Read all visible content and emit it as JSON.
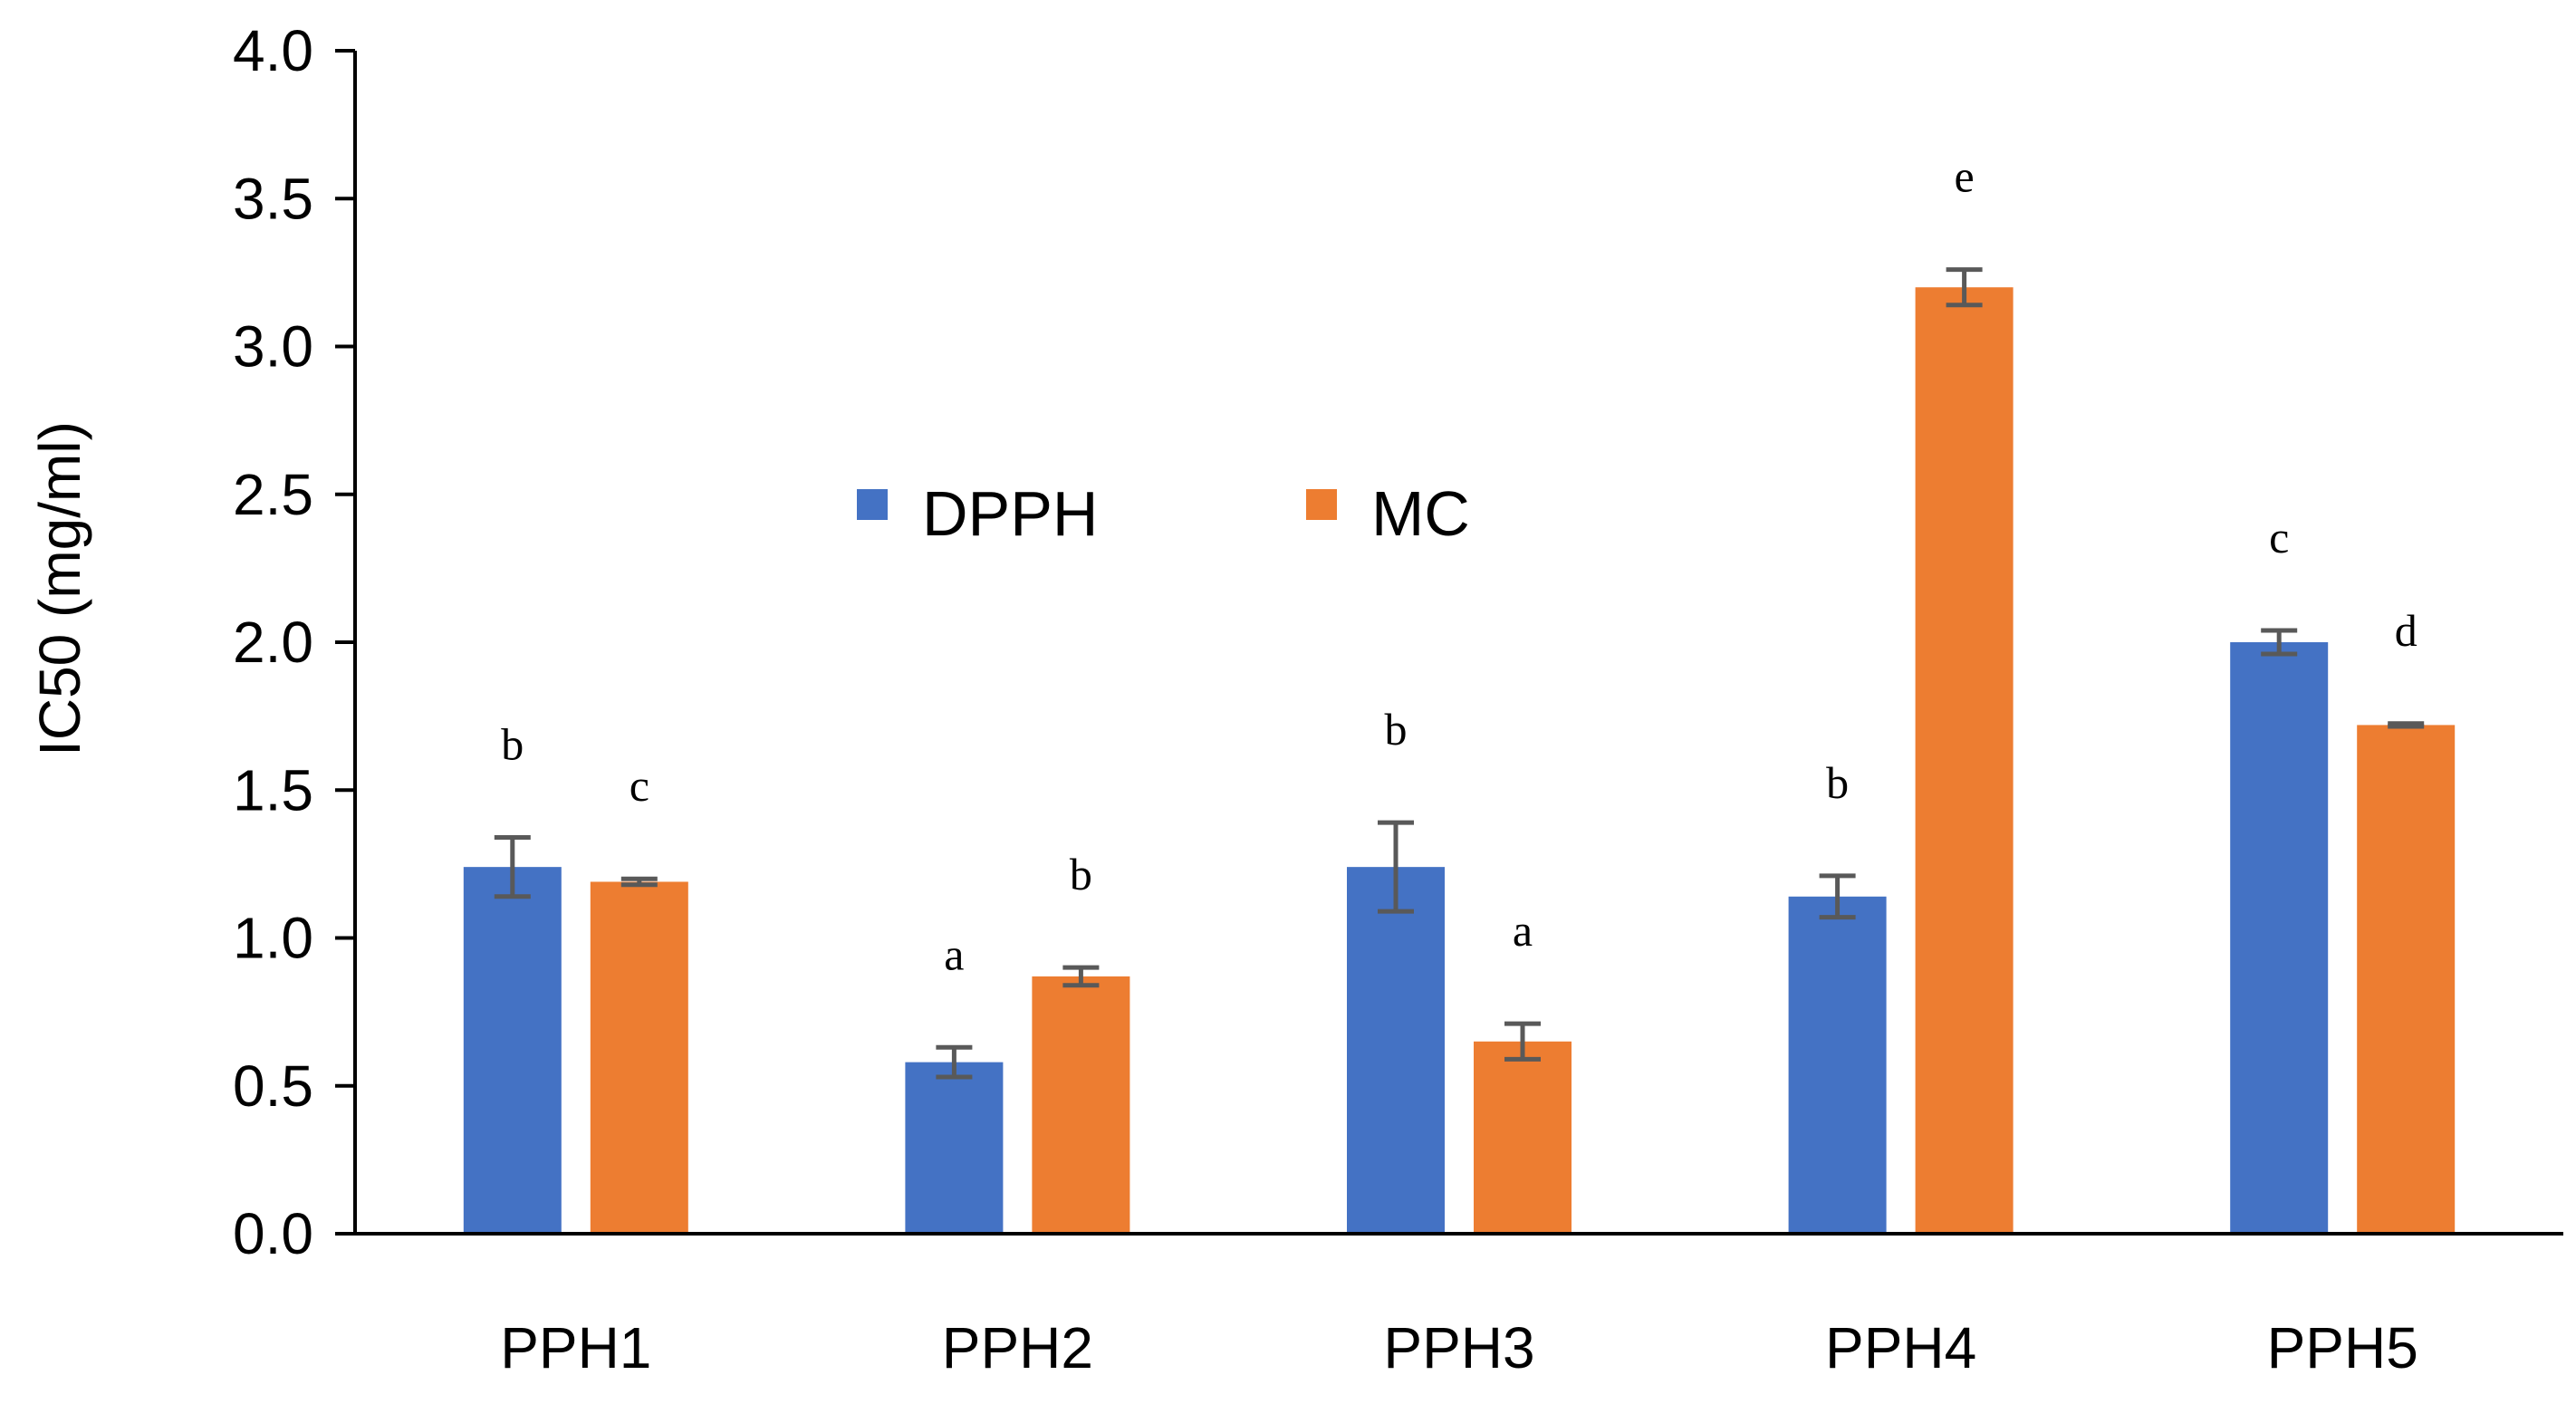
{
  "chart_data": {
    "type": "bar",
    "title": "",
    "xlabel": "",
    "ylabel": "IC50 (mg/ml)",
    "ylim": [
      0,
      4.0
    ],
    "ytick_step": 0.5,
    "yticks": [
      "0.0",
      "0.5",
      "1.0",
      "1.5",
      "2.0",
      "2.5",
      "3.0",
      "3.5",
      "4.0"
    ],
    "categories": [
      "PPH1",
      "PPH2",
      "PPH3",
      "PPH4",
      "PPH5"
    ],
    "grid": false,
    "legend_position": "center",
    "series": [
      {
        "name": "DPPH",
        "color": "#4472C4",
        "values": [
          1.24,
          0.58,
          1.24,
          1.14,
          2.0
        ],
        "errors": [
          0.1,
          0.05,
          0.15,
          0.07,
          0.04
        ],
        "letters": [
          "b",
          "a",
          "b",
          "b",
          "c"
        ]
      },
      {
        "name": "MC",
        "color": "#ED7D31",
        "values": [
          1.19,
          0.87,
          0.65,
          3.2,
          1.72
        ],
        "errors": [
          0.01,
          0.03,
          0.06,
          0.06,
          0.005
        ],
        "letters": [
          "c",
          "b",
          "a",
          "e",
          "d"
        ]
      }
    ]
  }
}
